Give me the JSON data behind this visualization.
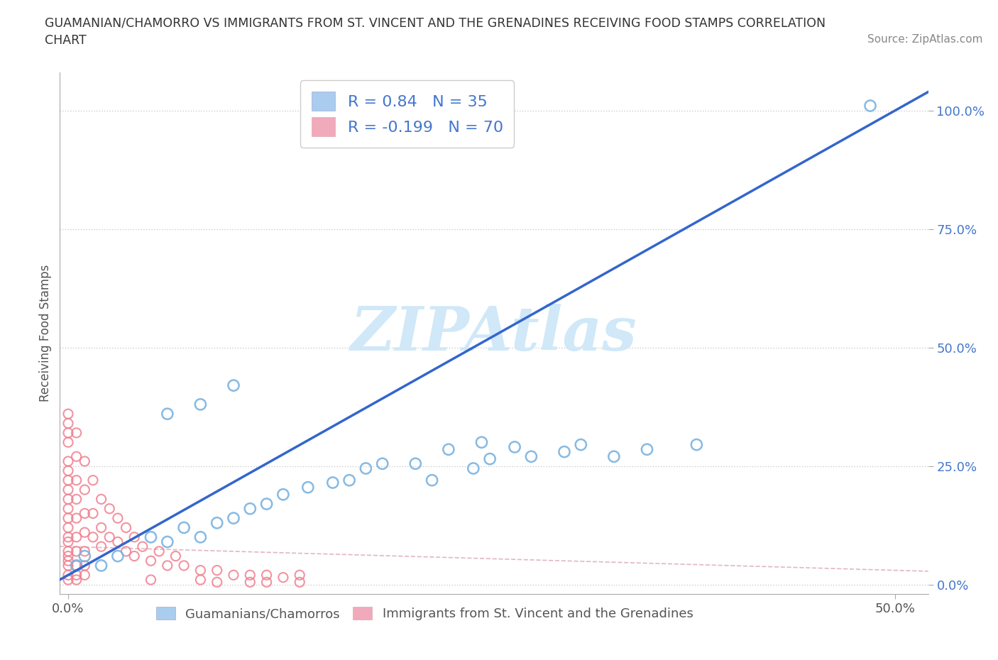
{
  "title_line1": "GUAMANIAN/CHAMORRO VS IMMIGRANTS FROM ST. VINCENT AND THE GRENADINES RECEIVING FOOD STAMPS CORRELATION",
  "title_line2": "CHART",
  "source_text": "Source: ZipAtlas.com",
  "ylabel": "Receiving Food Stamps",
  "blue_R": 0.84,
  "blue_N": 35,
  "pink_R": -0.199,
  "pink_N": 70,
  "blue_color": "#7ab3e0",
  "pink_color": "#f08090",
  "line_color": "#3366cc",
  "pink_line_color": "#cc8899",
  "watermark_color": "#d0e8f8",
  "legend_label_blue": "Guamanians/Chamorros",
  "legend_label_pink": "Immigrants from St. Vincent and the Grenadines",
  "blue_x": [
    0.005,
    0.01,
    0.02,
    0.03,
    0.05,
    0.06,
    0.07,
    0.08,
    0.09,
    0.1,
    0.11,
    0.12,
    0.13,
    0.145,
    0.16,
    0.17,
    0.18,
    0.19,
    0.21,
    0.22,
    0.23,
    0.245,
    0.25,
    0.255,
    0.27,
    0.28,
    0.3,
    0.31,
    0.33,
    0.35,
    0.38,
    0.1,
    0.08,
    0.06,
    0.485
  ],
  "blue_y": [
    0.04,
    0.06,
    0.04,
    0.06,
    0.1,
    0.09,
    0.12,
    0.1,
    0.13,
    0.14,
    0.16,
    0.17,
    0.19,
    0.205,
    0.215,
    0.22,
    0.245,
    0.255,
    0.255,
    0.22,
    0.285,
    0.245,
    0.3,
    0.265,
    0.29,
    0.27,
    0.28,
    0.295,
    0.27,
    0.285,
    0.295,
    0.42,
    0.38,
    0.36,
    1.01
  ],
  "pink_x": [
    0.0,
    0.0,
    0.0,
    0.0,
    0.0,
    0.0,
    0.0,
    0.0,
    0.0,
    0.0,
    0.0,
    0.0,
    0.0,
    0.0,
    0.0,
    0.0,
    0.0,
    0.0,
    0.0,
    0.0,
    0.005,
    0.005,
    0.005,
    0.005,
    0.005,
    0.005,
    0.005,
    0.005,
    0.005,
    0.005,
    0.01,
    0.01,
    0.01,
    0.01,
    0.01,
    0.01,
    0.01,
    0.015,
    0.015,
    0.015,
    0.02,
    0.02,
    0.02,
    0.025,
    0.025,
    0.03,
    0.03,
    0.035,
    0.035,
    0.04,
    0.04,
    0.045,
    0.05,
    0.055,
    0.06,
    0.065,
    0.07,
    0.08,
    0.09,
    0.1,
    0.11,
    0.12,
    0.13,
    0.14,
    0.05,
    0.08,
    0.09,
    0.11,
    0.12,
    0.14
  ],
  "pink_y": [
    0.34,
    0.36,
    0.3,
    0.32,
    0.24,
    0.26,
    0.2,
    0.22,
    0.16,
    0.18,
    0.12,
    0.14,
    0.09,
    0.06,
    0.04,
    0.02,
    0.01,
    0.07,
    0.1,
    0.05,
    0.32,
    0.27,
    0.22,
    0.18,
    0.14,
    0.1,
    0.07,
    0.04,
    0.02,
    0.01,
    0.26,
    0.2,
    0.15,
    0.11,
    0.07,
    0.04,
    0.02,
    0.22,
    0.15,
    0.1,
    0.18,
    0.12,
    0.08,
    0.16,
    0.1,
    0.14,
    0.09,
    0.12,
    0.07,
    0.1,
    0.06,
    0.08,
    0.05,
    0.07,
    0.04,
    0.06,
    0.04,
    0.03,
    0.03,
    0.02,
    0.02,
    0.02,
    0.015,
    0.02,
    0.01,
    0.01,
    0.005,
    0.005,
    0.005,
    0.005
  ],
  "x_lim": [
    -0.005,
    0.52
  ],
  "y_lim": [
    -0.02,
    1.08
  ],
  "x_ticks": [
    0.0,
    0.5
  ],
  "y_ticks": [
    0.0,
    0.25,
    0.5,
    0.75,
    1.0
  ],
  "x_tick_labels": [
    "0.0%",
    "50.0%"
  ],
  "y_tick_labels": [
    "0.0%",
    "25.0%",
    "50.0%",
    "75.0%",
    "100.0%"
  ]
}
